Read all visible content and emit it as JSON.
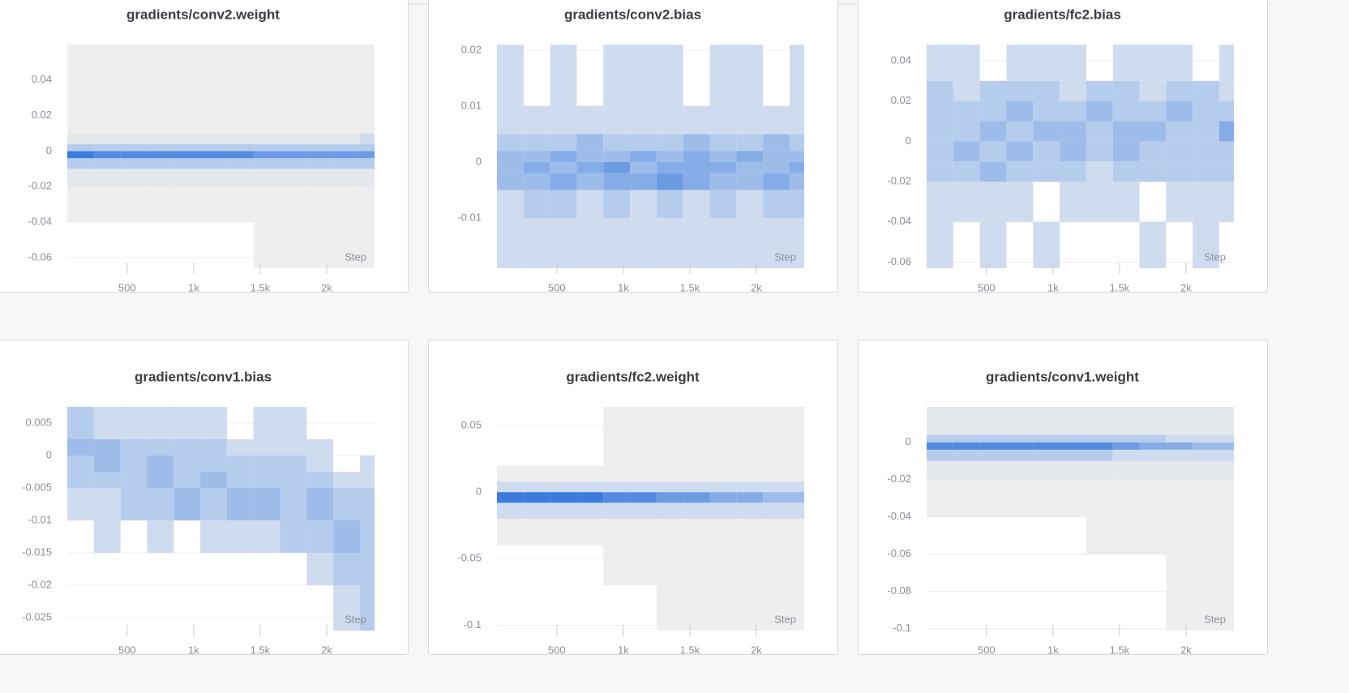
{
  "chart_data": [
    {
      "type": "heatmap",
      "title": "gradients/conv2.weight",
      "x_label": "Step",
      "colors": [
        "#eeeeee",
        "#3a7bdc"
      ],
      "xlim": [
        50,
        2360
      ],
      "xticks": [
        {
          "value": 500,
          "label": "500"
        },
        {
          "value": 1000,
          "label": "1k"
        },
        {
          "value": 1500,
          "label": "1.5k"
        },
        {
          "value": 2000,
          "label": "2k"
        }
      ],
      "ylim": [
        -0.066,
        0.06
      ],
      "yticks": [
        -0.06,
        -0.04,
        -0.02,
        0,
        0.02,
        0.04
      ],
      "grid": true,
      "x": [
        50,
        250,
        450,
        650,
        850,
        1050,
        1250,
        1450,
        1650,
        1850,
        2050,
        2250,
        2360
      ],
      "y": [
        -0.066,
        -0.04,
        -0.02,
        -0.01,
        -0.004,
        0,
        0.004,
        0.01,
        0.02,
        0.06
      ],
      "values": [
        [
          0,
          0,
          0,
          0,
          0,
          0,
          0,
          1,
          1,
          1,
          1,
          1
        ],
        [
          1,
          1,
          1,
          1,
          1,
          1,
          1,
          1,
          1,
          1,
          1,
          1
        ],
        [
          2,
          2,
          2,
          2,
          2,
          2,
          2,
          2,
          2,
          2,
          2,
          2
        ],
        [
          4,
          4,
          4,
          4,
          4,
          4,
          4,
          4,
          4,
          4,
          4,
          4
        ],
        [
          9,
          8,
          8,
          8,
          8,
          8,
          8,
          7,
          7,
          7,
          7,
          7
        ],
        [
          4,
          4,
          4,
          4,
          4,
          4,
          4,
          4,
          4,
          4,
          4,
          4
        ],
        [
          2,
          2,
          2,
          2,
          2,
          2,
          2,
          2,
          2,
          2,
          2,
          3
        ],
        [
          1,
          1,
          1,
          1,
          1,
          1,
          1,
          1,
          1,
          1,
          1,
          1
        ],
        [
          1,
          1,
          1,
          1,
          1,
          1,
          1,
          1,
          1,
          1,
          1,
          1
        ]
      ]
    },
    {
      "type": "heatmap",
      "title": "gradients/conv2.bias",
      "x_label": "Step",
      "colors": [
        "#eeeeee",
        "#3a7bdc"
      ],
      "xlim": [
        50,
        2360
      ],
      "xticks": [
        {
          "value": 500,
          "label": "500"
        },
        {
          "value": 1000,
          "label": "1k"
        },
        {
          "value": 1500,
          "label": "1.5k"
        },
        {
          "value": 2000,
          "label": "2k"
        }
      ],
      "ylim": [
        -0.019,
        0.021
      ],
      "yticks": [
        -0.01,
        0,
        0.01,
        0.02
      ],
      "grid": true,
      "x": [
        50,
        250,
        450,
        650,
        850,
        1050,
        1250,
        1450,
        1650,
        1850,
        2050,
        2250,
        2360
      ],
      "y": [
        -0.019,
        -0.01,
        -0.005,
        -0.002,
        0,
        0.002,
        0.005,
        0.01,
        0.021
      ],
      "values": [
        [
          3,
          3,
          3,
          3,
          3,
          3,
          3,
          3,
          3,
          3,
          3,
          3
        ],
        [
          3,
          4,
          4,
          3,
          4,
          3,
          4,
          3,
          4,
          3,
          4,
          4
        ],
        [
          5,
          5,
          6,
          5,
          6,
          6,
          7,
          6,
          5,
          5,
          6,
          5
        ],
        [
          5,
          6,
          5,
          6,
          7,
          5,
          6,
          6,
          6,
          5,
          5,
          6
        ],
        [
          5,
          5,
          6,
          5,
          5,
          6,
          5,
          6,
          5,
          6,
          5,
          5
        ],
        [
          4,
          4,
          4,
          5,
          4,
          4,
          4,
          5,
          4,
          4,
          5,
          4
        ],
        [
          3,
          3,
          3,
          3,
          3,
          3,
          3,
          3,
          3,
          3,
          3,
          3
        ],
        [
          3,
          0,
          3,
          0,
          3,
          3,
          3,
          0,
          3,
          3,
          0,
          3
        ]
      ]
    },
    {
      "type": "heatmap",
      "title": "gradients/fc2.bias",
      "x_label": "Step",
      "colors": [
        "#eeeeee",
        "#3a7bdc"
      ],
      "xlim": [
        50,
        2360
      ],
      "xticks": [
        {
          "value": 500,
          "label": "500"
        },
        {
          "value": 1000,
          "label": "1k"
        },
        {
          "value": 1500,
          "label": "1.5k"
        },
        {
          "value": 2000,
          "label": "2k"
        }
      ],
      "ylim": [
        -0.063,
        0.048
      ],
      "yticks": [
        -0.06,
        -0.04,
        -0.02,
        0,
        0.02,
        0.04
      ],
      "grid": true,
      "x": [
        50,
        250,
        450,
        650,
        850,
        1050,
        1250,
        1450,
        1650,
        1850,
        2050,
        2250,
        2360
      ],
      "y": [
        -0.063,
        -0.04,
        -0.02,
        -0.01,
        0,
        0.01,
        0.02,
        0.03,
        0.048
      ],
      "values": [
        [
          3,
          0,
          3,
          0,
          3,
          0,
          0,
          0,
          3,
          0,
          3,
          0
        ],
        [
          3,
          3,
          3,
          3,
          0,
          3,
          3,
          3,
          0,
          3,
          3,
          3
        ],
        [
          4,
          4,
          5,
          4,
          4,
          4,
          3,
          4,
          4,
          4,
          4,
          4
        ],
        [
          4,
          5,
          4,
          5,
          4,
          5,
          4,
          5,
          4,
          4,
          4,
          4
        ],
        [
          4,
          4,
          5,
          4,
          5,
          5,
          4,
          5,
          5,
          4,
          4,
          6
        ],
        [
          4,
          4,
          4,
          5,
          4,
          4,
          5,
          4,
          4,
          5,
          4,
          4
        ],
        [
          4,
          3,
          4,
          4,
          4,
          3,
          4,
          4,
          3,
          4,
          4,
          3
        ],
        [
          3,
          3,
          0,
          3,
          3,
          3,
          0,
          3,
          3,
          3,
          0,
          3
        ]
      ]
    },
    {
      "type": "heatmap",
      "title": "gradients/conv1.bias",
      "x_label": "Step",
      "colors": [
        "#eeeeee",
        "#3a7bdc"
      ],
      "xlim": [
        50,
        2360
      ],
      "xticks": [
        {
          "value": 500,
          "label": "500"
        },
        {
          "value": 1000,
          "label": "1k"
        },
        {
          "value": 1500,
          "label": "1.5k"
        },
        {
          "value": 2000,
          "label": "2k"
        }
      ],
      "ylim": [
        -0.027,
        0.0075
      ],
      "yticks": [
        -0.025,
        -0.02,
        -0.015,
        -0.01,
        -0.005,
        0,
        0.005
      ],
      "grid": true,
      "x": [
        50,
        250,
        450,
        650,
        850,
        1050,
        1250,
        1450,
        1650,
        1850,
        2050,
        2250,
        2360
      ],
      "y": [
        -0.027,
        -0.02,
        -0.015,
        -0.01,
        -0.005,
        -0.0025,
        0,
        0.0025,
        0.0075
      ],
      "values": [
        [
          0,
          0,
          0,
          0,
          0,
          0,
          0,
          0,
          0,
          0,
          3,
          4
        ],
        [
          0,
          0,
          0,
          0,
          0,
          0,
          0,
          0,
          0,
          3,
          4,
          4
        ],
        [
          0,
          3,
          0,
          3,
          0,
          3,
          3,
          3,
          4,
          4,
          5,
          4
        ],
        [
          3,
          3,
          4,
          4,
          5,
          4,
          5,
          5,
          4,
          5,
          4,
          4
        ],
        [
          4,
          4,
          4,
          5,
          4,
          5,
          4,
          4,
          4,
          4,
          3,
          3
        ],
        [
          4,
          5,
          4,
          5,
          4,
          4,
          4,
          4,
          4,
          3,
          0,
          3
        ],
        [
          5,
          5,
          4,
          4,
          4,
          4,
          3,
          3,
          3,
          3,
          0,
          0
        ],
        [
          4,
          3,
          3,
          3,
          3,
          3,
          0,
          3,
          3,
          0,
          0,
          0
        ]
      ]
    },
    {
      "type": "heatmap",
      "title": "gradients/fc2.weight",
      "x_label": "Step",
      "colors": [
        "#eeeeee",
        "#3a7bdc"
      ],
      "xlim": [
        50,
        2360
      ],
      "xticks": [
        {
          "value": 500,
          "label": "500"
        },
        {
          "value": 1000,
          "label": "1k"
        },
        {
          "value": 1500,
          "label": "1.5k"
        },
        {
          "value": 2000,
          "label": "2k"
        }
      ],
      "ylim": [
        -0.104,
        0.064
      ],
      "yticks": [
        -0.1,
        -0.05,
        0,
        0.05
      ],
      "grid": true,
      "x": [
        50,
        250,
        450,
        650,
        850,
        1050,
        1250,
        1450,
        1650,
        1850,
        2050,
        2250,
        2360
      ],
      "y": [
        -0.104,
        -0.07,
        -0.04,
        -0.02,
        -0.008,
        0,
        0.008,
        0.02,
        0.064
      ],
      "values": [
        [
          0,
          0,
          0,
          0,
          0,
          0,
          1,
          1,
          1,
          1,
          1,
          1
        ],
        [
          0,
          0,
          0,
          0,
          1,
          1,
          1,
          1,
          1,
          1,
          1,
          1
        ],
        [
          1,
          1,
          1,
          1,
          1,
          1,
          1,
          1,
          1,
          1,
          1,
          1
        ],
        [
          3,
          3,
          3,
          3,
          3,
          3,
          3,
          3,
          3,
          3,
          3,
          3
        ],
        [
          9,
          9,
          9,
          9,
          8,
          8,
          7,
          7,
          6,
          6,
          5,
          5
        ],
        [
          3,
          3,
          3,
          3,
          3,
          3,
          3,
          3,
          3,
          3,
          3,
          3
        ],
        [
          1,
          1,
          1,
          1,
          1,
          1,
          1,
          1,
          1,
          1,
          1,
          1
        ],
        [
          0,
          0,
          0,
          0,
          1,
          1,
          1,
          1,
          1,
          1,
          1,
          1
        ]
      ]
    },
    {
      "type": "heatmap",
      "title": "gradients/conv1.weight",
      "x_label": "Step",
      "colors": [
        "#eeeeee",
        "#3a7bdc"
      ],
      "xlim": [
        50,
        2360
      ],
      "xticks": [
        {
          "value": 500,
          "label": "500"
        },
        {
          "value": 1000,
          "label": "1k"
        },
        {
          "value": 1500,
          "label": "1.5k"
        },
        {
          "value": 2000,
          "label": "2k"
        }
      ],
      "ylim": [
        -0.101,
        0.019
      ],
      "yticks": [
        -0.1,
        -0.08,
        -0.06,
        -0.04,
        -0.02,
        0
      ],
      "grid": true,
      "x": [
        50,
        250,
        450,
        650,
        850,
        1050,
        1250,
        1450,
        1650,
        1850,
        2050,
        2250,
        2360
      ],
      "y": [
        -0.101,
        -0.06,
        -0.04,
        -0.02,
        -0.01,
        -0.004,
        0,
        0.004,
        0.019
      ],
      "values": [
        [
          0,
          0,
          0,
          0,
          0,
          0,
          0,
          0,
          0,
          1,
          1,
          1
        ],
        [
          0,
          0,
          0,
          0,
          0,
          0,
          1,
          1,
          1,
          1,
          1,
          1
        ],
        [
          1,
          1,
          1,
          1,
          1,
          1,
          1,
          1,
          1,
          1,
          1,
          1
        ],
        [
          2,
          2,
          2,
          2,
          2,
          2,
          2,
          2,
          2,
          2,
          2,
          2
        ],
        [
          4,
          4,
          4,
          4,
          4,
          4,
          4,
          3,
          3,
          3,
          3,
          3
        ],
        [
          8,
          8,
          8,
          8,
          8,
          8,
          8,
          7,
          6,
          6,
          5,
          5
        ],
        [
          4,
          4,
          4,
          4,
          4,
          4,
          4,
          4,
          4,
          3,
          3,
          3
        ],
        [
          2,
          2,
          2,
          2,
          2,
          2,
          2,
          2,
          2,
          2,
          2,
          2
        ]
      ]
    }
  ]
}
